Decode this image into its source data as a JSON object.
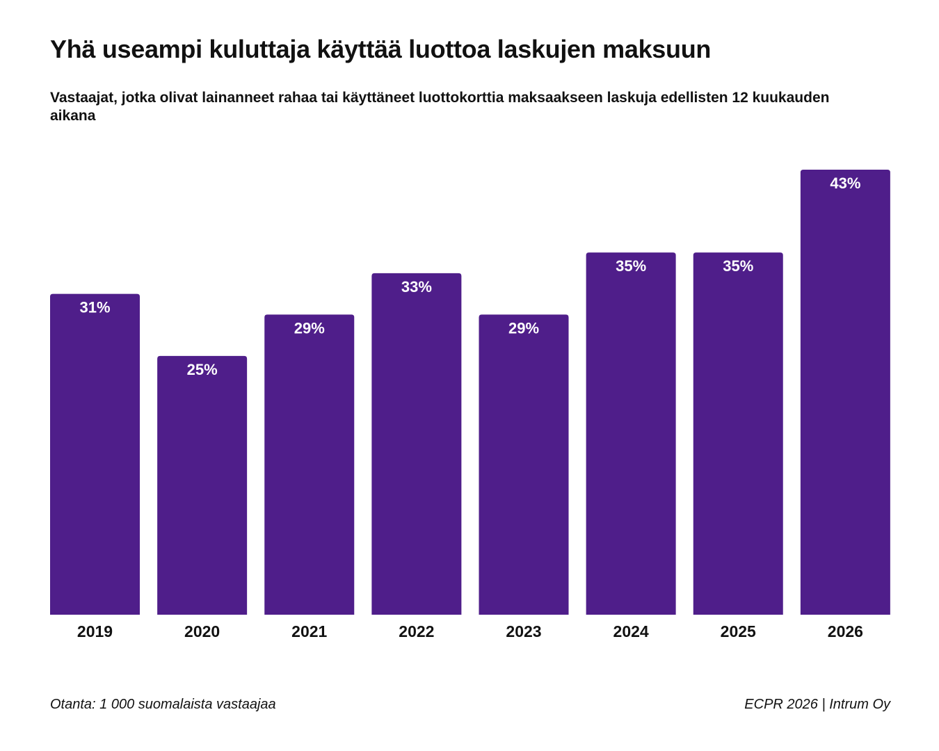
{
  "title": "Yhä useampi kuluttaja käyttää luottoa laskujen maksuun",
  "subtitle": "Vastaajat, jotka olivat lainanneet rahaa tai käyttäneet luottokorttia maksaakseen laskuja edellisten 12 kuukauden aikana",
  "footer": {
    "left": "Otanta: 1 000 suomalaista vastaajaa",
    "right": "ECPR 2026 | Intrum Oy"
  },
  "colors": {
    "bar": "#4f1e8a",
    "label": "#ffffff",
    "text": "#111111"
  },
  "chart_data": {
    "type": "bar",
    "categories": [
      "2019",
      "2020",
      "2021",
      "2022",
      "2023",
      "2024",
      "2025",
      "2026"
    ],
    "values": [
      31,
      25,
      29,
      33,
      29,
      35,
      35,
      43
    ],
    "labels": [
      "31%",
      "25%",
      "29%",
      "33%",
      "29%",
      "35%",
      "35%",
      "43%"
    ],
    "unit": "%",
    "ylim": [
      0,
      43
    ],
    "grid": false,
    "legend": "none"
  }
}
